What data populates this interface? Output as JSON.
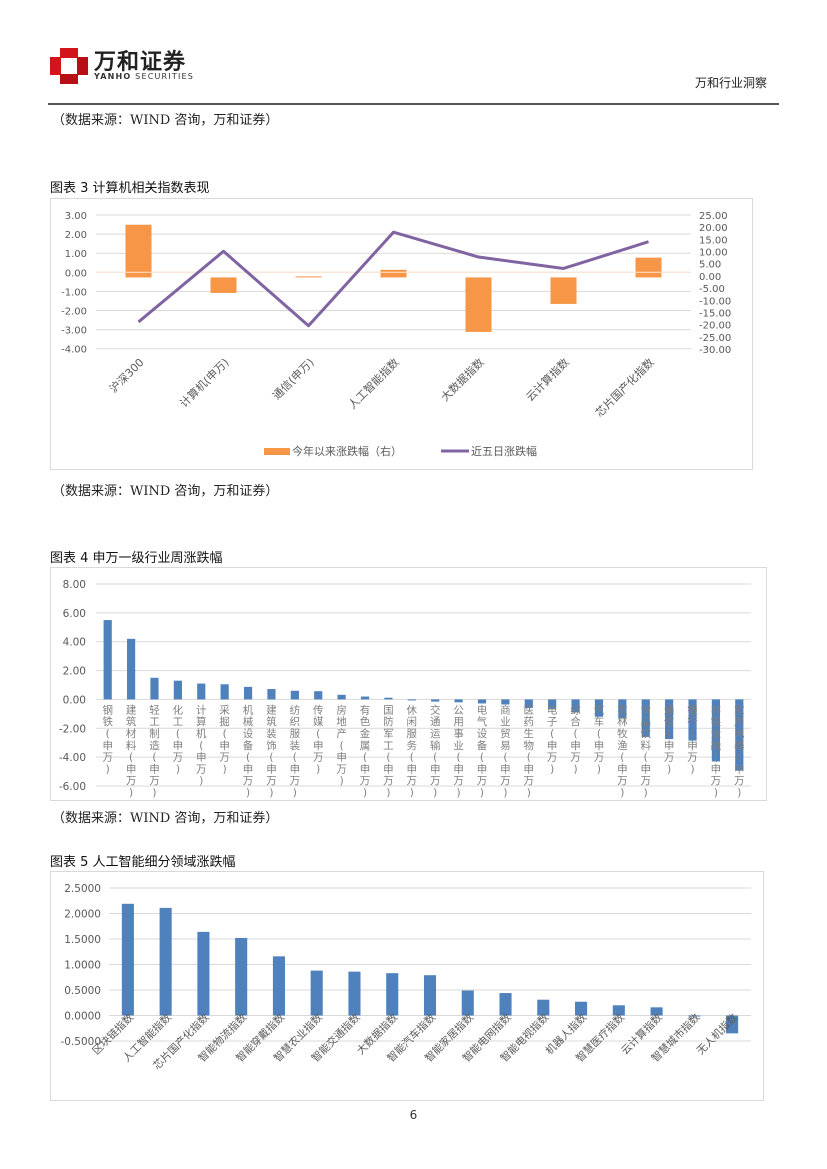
{
  "header": {
    "logo_cn": "万和证券",
    "logo_en_bold": "YANHO",
    "logo_en_rest": " SECURITIES",
    "right_title": "万和行业洞察",
    "logo_color": "#d4141c"
  },
  "sources": {
    "s1": "（数据来源：WIND 咨询，万和证券）",
    "s2": "（数据来源：WIND 咨询，万和证券）",
    "s3": "（数据来源：WIND 咨询，万和证券）"
  },
  "figures": {
    "f3_title": "图表  3 计算机相关指数表现",
    "f4_title": "图表  4  申万一级行业周涨跌幅",
    "f5_title": "图表  5 人工智能细分领域涨跌幅"
  },
  "page_number": "6",
  "chart_data": [
    {
      "id": "fig3",
      "type": "bar+line",
      "title": "计算机相关指数表现",
      "categories": [
        "沪深300",
        "计算机(申万)",
        "通信(申万)",
        "人工智能指数",
        "大数据指数",
        "云计算指数",
        "芯片国产化指数"
      ],
      "series": [
        {
          "name": "今年以来涨跌幅（右）",
          "type": "bar",
          "axis": "right",
          "color": "#f79646",
          "values": [
            21.0,
            -7.0,
            -0.2,
            2.5,
            -23.0,
            -11.5,
            7.5
          ]
        },
        {
          "name": "近五日涨跌幅",
          "type": "line",
          "axis": "left",
          "color": "#8064a2",
          "values": [
            -2.6,
            1.1,
            -2.8,
            2.1,
            0.8,
            0.2,
            1.6
          ]
        }
      ],
      "left_axis": {
        "ticks": [
          "3.00",
          "2.00",
          "1.00",
          "0.00",
          "-1.00",
          "-2.00",
          "-3.00",
          "-4.00"
        ],
        "range": [
          -4,
          3
        ]
      },
      "right_axis": {
        "ticks": [
          "25.00",
          "20.00",
          "15.00",
          "10.00",
          "5.00",
          "0.00",
          "-5.00",
          "-10.00",
          "-15.00",
          "-20.00",
          "-25.00",
          "-30.00"
        ],
        "range": [
          -30,
          25
        ]
      },
      "legend": {
        "position": "bottom",
        "items": [
          "今年以来涨跌幅（右）",
          "近五日涨跌幅"
        ]
      },
      "grid": true
    },
    {
      "id": "fig4",
      "type": "bar",
      "title": "申万一级行业周涨跌幅",
      "color": "#4f81bd",
      "categories": [
        "钢铁(申万)",
        "建筑材料(申万)",
        "轻工制造(申万)",
        "化工(申万)",
        "计算机(申万)",
        "采掘(申万)",
        "机械设备(申万)",
        "建筑装饰(申万)",
        "纺织服装(申万)",
        "传媒(申万)",
        "房地产(申万)",
        "有色金属(申万)",
        "国防军工(申万)",
        "休闲服务(申万)",
        "交通运输(申万)",
        "公用事业(申万)",
        "电气设备(申万)",
        "商业贸易(申万)",
        "医药生物(申万)",
        "电子(申万)",
        "综合(申万)",
        "汽车(申万)",
        "农林牧渔(申万)",
        "食品饮料(申万)",
        "通信(申万)",
        "银行(申万)",
        "非银金融(申万)",
        "家用电器(申万)"
      ],
      "values": [
        5.5,
        4.2,
        1.5,
        1.3,
        1.1,
        1.05,
        0.87,
        0.72,
        0.6,
        0.57,
        0.32,
        0.2,
        0.12,
        -0.03,
        -0.15,
        -0.2,
        -0.28,
        -0.35,
        -0.6,
        -0.65,
        -0.9,
        -1.2,
        -1.3,
        -2.6,
        -2.75,
        -2.85,
        -4.3,
        -4.9
      ],
      "y_ticks": [
        "8.00",
        "6.00",
        "4.00",
        "2.00",
        "0.00",
        "-2.00",
        "-4.00",
        "-6.00"
      ],
      "ylim": [
        -6,
        8
      ],
      "grid": true
    },
    {
      "id": "fig5",
      "type": "bar",
      "title": "人工智能细分领域涨跌幅",
      "color": "#4f81bd",
      "categories": [
        "区块链指数",
        "人工智能指数",
        "芯片国产化指数",
        "智能物流指数",
        "智能穿戴指数",
        "智慧农业指数",
        "智能交通指数",
        "大数据指数",
        "智能汽车指数",
        "智能家居指数",
        "智能电网指数",
        "智能电视指数",
        "机器人指数",
        "智慧医疗指数",
        "云计算指数",
        "智慧城市指数",
        "无人机指数"
      ],
      "values": [
        2.19,
        2.11,
        1.64,
        1.52,
        1.16,
        0.88,
        0.86,
        0.83,
        0.79,
        0.49,
        0.44,
        0.31,
        0.27,
        0.2,
        0.16,
        0.0,
        -0.35
      ],
      "y_ticks": [
        "2.5000",
        "2.0000",
        "1.5000",
        "1.0000",
        "0.5000",
        "0.0000",
        "-0.5000"
      ],
      "ylim": [
        -0.5,
        2.5
      ],
      "grid": true
    }
  ]
}
